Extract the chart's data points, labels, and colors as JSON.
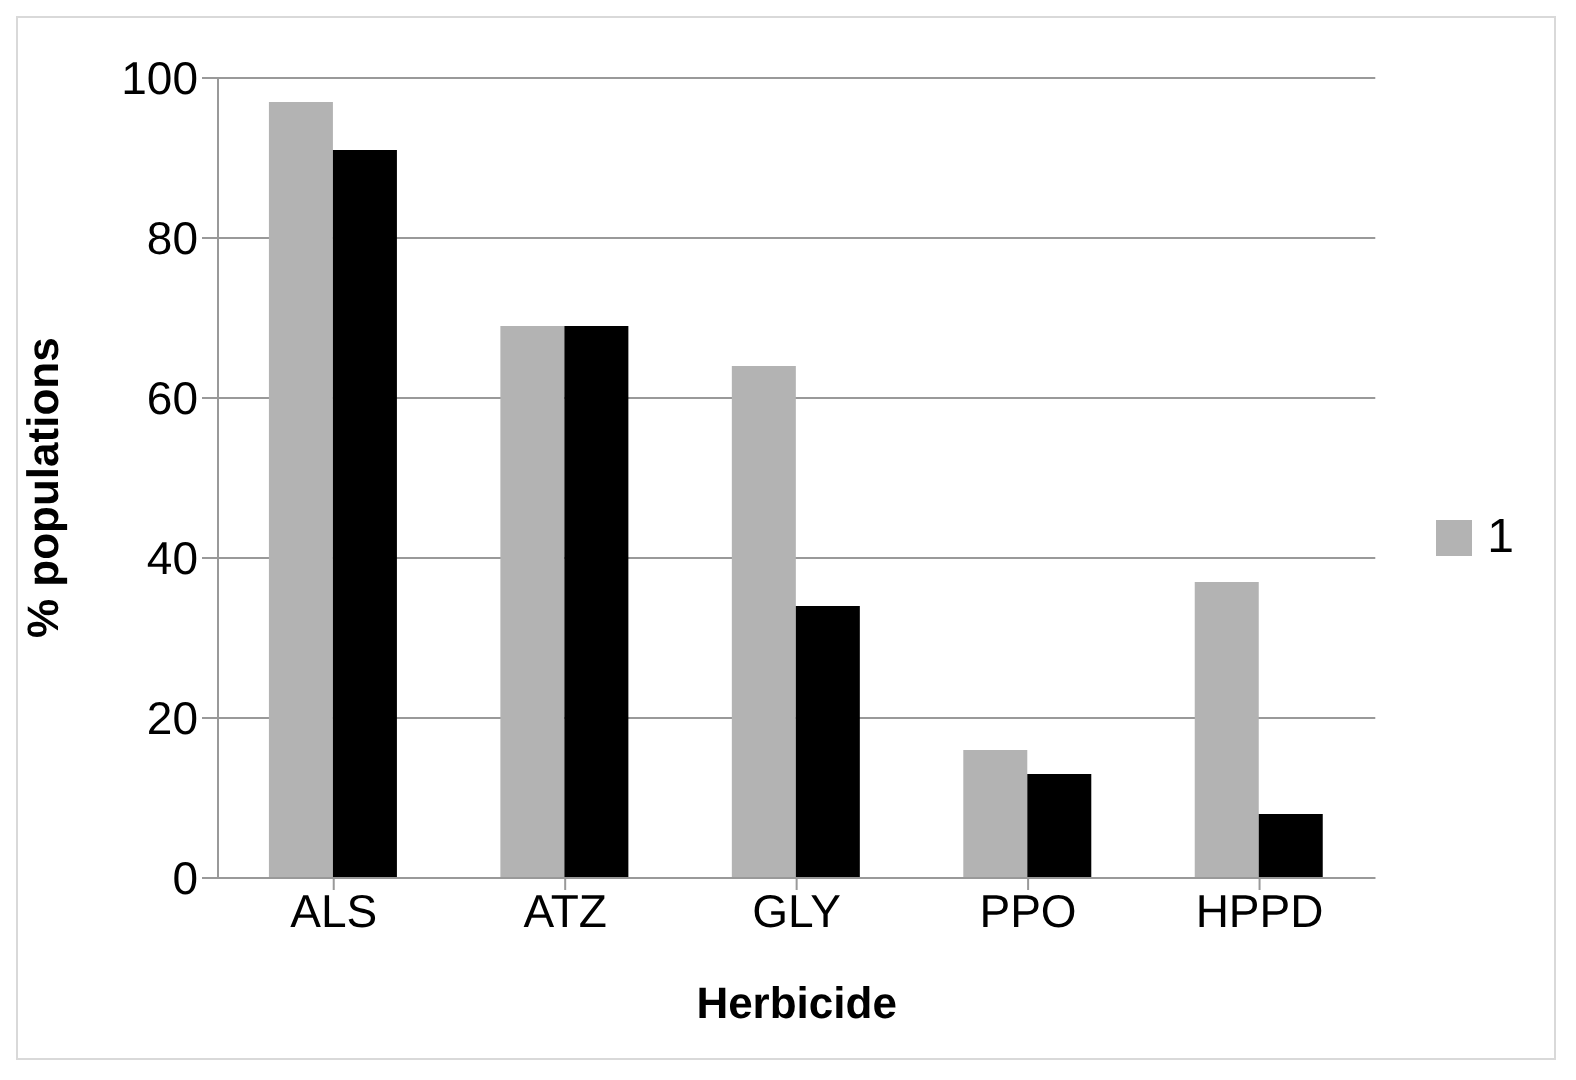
{
  "chart_data": {
    "type": "bar",
    "xlabel": "Herbicide",
    "ylabel": "% populations",
    "categories": [
      "ALS",
      "ATZ",
      "GLY",
      "PPO",
      "HPPD"
    ],
    "series": [
      {
        "name": "1",
        "color": "#b3b3b3",
        "values": [
          97,
          69,
          64,
          16,
          37
        ]
      },
      {
        "color": "#000000",
        "values": [
          91,
          69,
          34,
          13,
          8
        ]
      }
    ],
    "ylim": [
      0,
      100
    ],
    "yticks": [
      0,
      20,
      40,
      60,
      80,
      100
    ],
    "grid": "y",
    "legend": "right"
  }
}
